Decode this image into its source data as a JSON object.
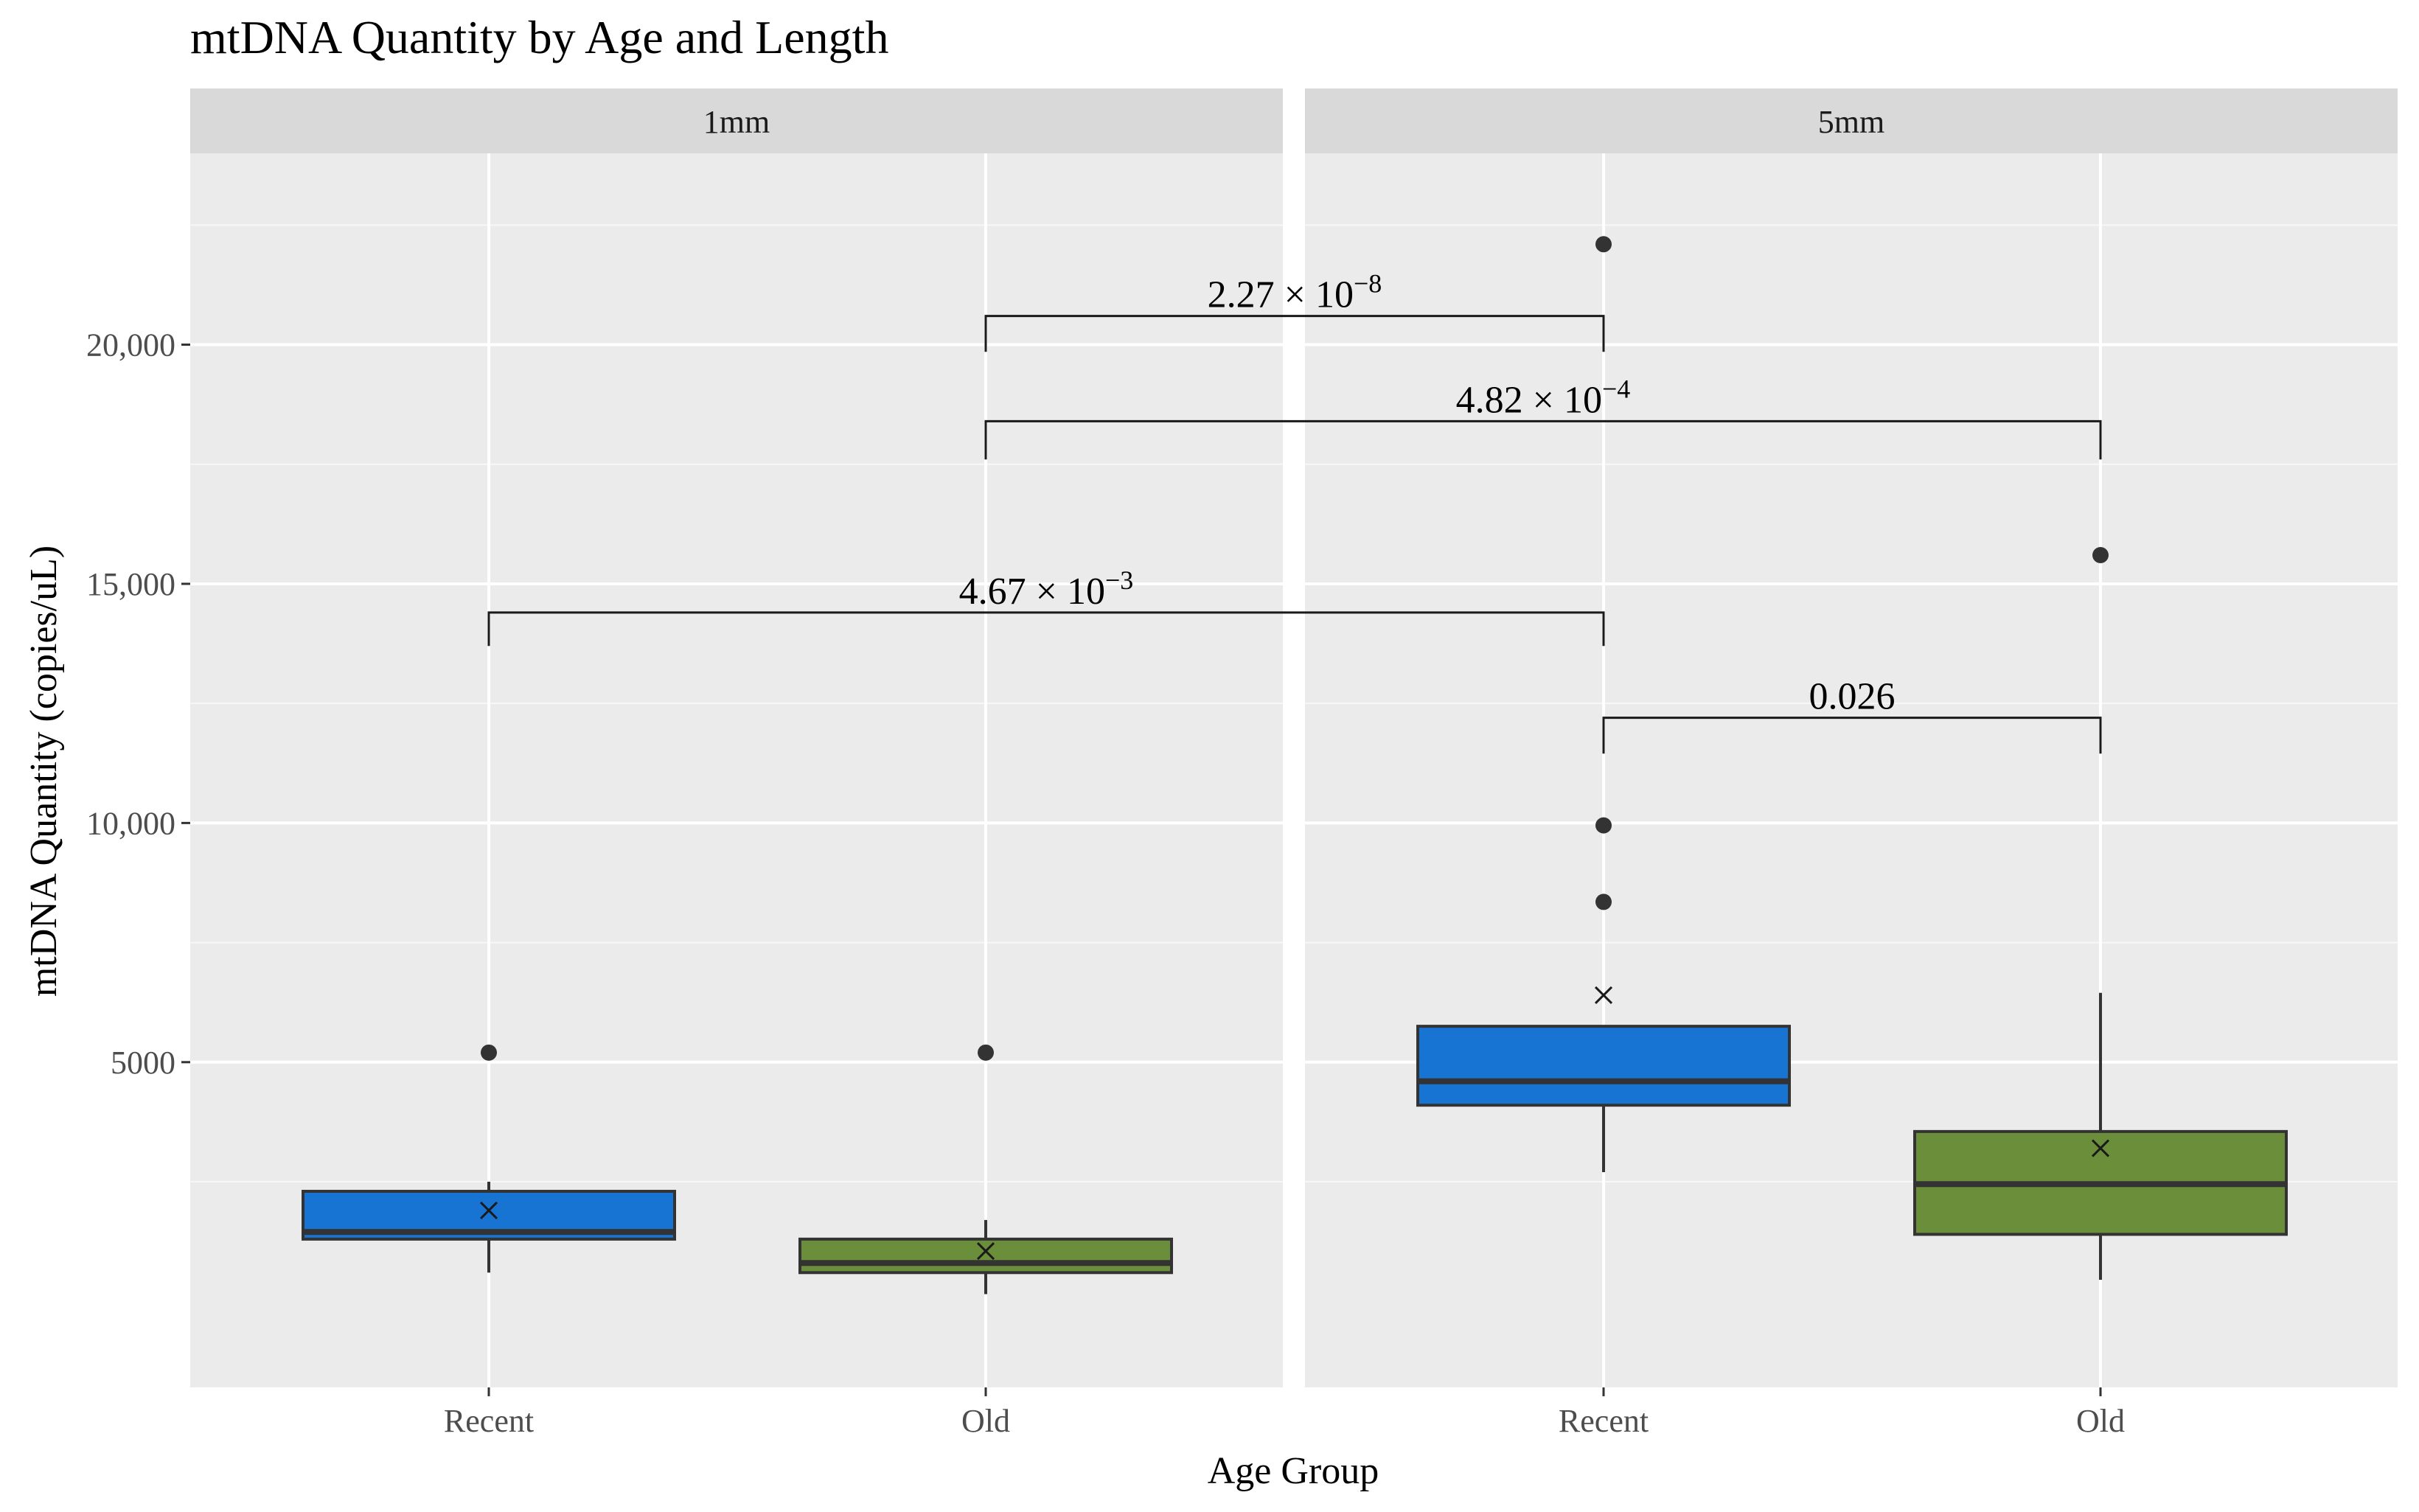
{
  "chart_data": {
    "type": "box",
    "title": "mtDNA Quantity by Age and Length",
    "xlabel": "Age Group",
    "ylabel": "mtDNA Quantity (copies/uL)",
    "ylim": [
      -1800,
      24000
    ],
    "yticks": [
      {
        "value": 5000,
        "label": "5000"
      },
      {
        "value": 10000,
        "label": "10,000"
      },
      {
        "value": 15000,
        "label": "15,000"
      },
      {
        "value": 20000,
        "label": "20,000"
      }
    ],
    "grid": true,
    "legend": "none",
    "colors": {
      "Recent": "#1874d2",
      "Old": "#6b8e3a"
    },
    "panels": [
      {
        "name": "1mm",
        "groups": [
          {
            "name": "Recent",
            "whisker_low": 600,
            "q1": 1300,
            "median": 1450,
            "q3": 2300,
            "whisker_high": 2500,
            "mean": 1900,
            "outliers": [
              5200
            ]
          },
          {
            "name": "Old",
            "whisker_low": 150,
            "q1": 600,
            "median": 800,
            "q3": 1300,
            "whisker_high": 1700,
            "mean": 1050,
            "outliers": [
              5200
            ]
          }
        ]
      },
      {
        "name": "5mm",
        "groups": [
          {
            "name": "Recent",
            "whisker_low": 2700,
            "q1": 4100,
            "median": 4600,
            "q3": 5750,
            "whisker_high": 5750,
            "mean": 6400,
            "outliers": [
              8350,
              9950,
              22100
            ]
          },
          {
            "name": "Old",
            "whisker_low": 450,
            "q1": 1400,
            "median": 2450,
            "q3": 3550,
            "whisker_high": 6450,
            "mean": 3200,
            "outliers": [
              15600
            ]
          }
        ]
      }
    ],
    "annotations": [
      {
        "from": {
          "panel": 0,
          "group": 1
        },
        "to": {
          "panel": 1,
          "group": 0
        },
        "y_bracket": 20600,
        "y_left_end": 19850,
        "y_right_end": 19850,
        "mantissa": "2.27 × 10",
        "exponent": "−8"
      },
      {
        "from": {
          "panel": 0,
          "group": 1
        },
        "to": {
          "panel": 1,
          "group": 1
        },
        "y_bracket": 18400,
        "y_left_end": 17600,
        "y_right_end": 17600,
        "mantissa": "4.82 × 10",
        "exponent": "−4"
      },
      {
        "from": {
          "panel": 0,
          "group": 0
        },
        "to": {
          "panel": 1,
          "group": 0
        },
        "y_bracket": 14400,
        "y_left_end": 13700,
        "y_right_end": 13700,
        "mantissa": "4.67 × 10",
        "exponent": "−3"
      },
      {
        "from": {
          "panel": 1,
          "group": 0
        },
        "to": {
          "panel": 1,
          "group": 1
        },
        "y_bracket": 12200,
        "y_left_end": 11450,
        "y_right_end": 11450,
        "mantissa": "0.026",
        "exponent": ""
      }
    ]
  }
}
